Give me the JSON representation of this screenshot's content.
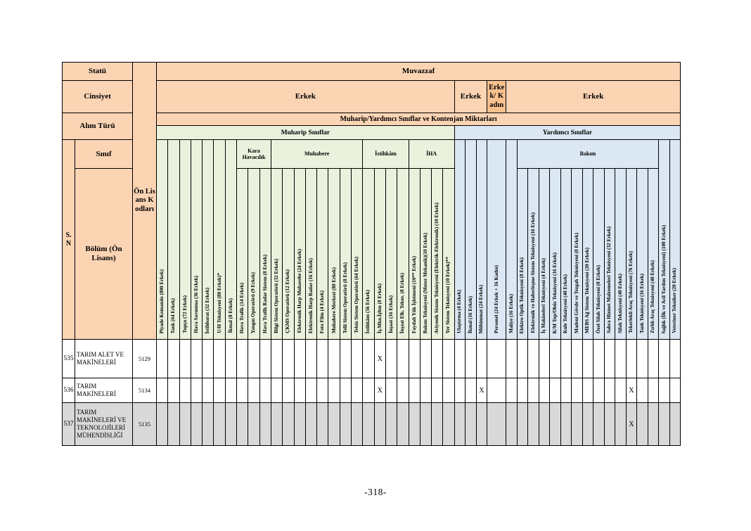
{
  "page": {
    "number": "-318-"
  },
  "table": {
    "left_headers": {
      "statu": "Statü",
      "cinsiyet": "Cinsiyet",
      "alim_turu": "Alım Türü",
      "sinif": "Sınıf",
      "sn": "S. N",
      "bolum": "Bölüm (Ön Lisans)",
      "on_lisans_kodlari": "Ön Lisans Kodları"
    },
    "status_header": "Muvazzaf",
    "gender_spans": [
      {
        "label": "Erkek",
        "span": 26,
        "variant": "light"
      },
      {
        "label": "Erkek",
        "span": 3,
        "variant": "light"
      },
      {
        "label": "Erkek/ Kadın",
        "span": 1,
        "variant": "dark"
      },
      {
        "label": "Erkek",
        "span": 16,
        "variant": "light"
      }
    ],
    "alim_turu_header": "Muharip/Yardımcı Sınıflar ve Kontenjan Miktarları",
    "sections": [
      {
        "label": "Muharip Sınıflar",
        "span": 26,
        "variant": "muharip"
      },
      {
        "label": "Yardımcı Sınıflar",
        "span": 20,
        "variant": "yardimci"
      }
    ],
    "columns": [
      {
        "label": "Piyade Komando (800 Erkek)",
        "section": "muharip",
        "group": null
      },
      {
        "label": "Tank (64 Erkek)",
        "section": "muharip",
        "group": null
      },
      {
        "label": "Topçu (72 Erkek)",
        "section": "muharip",
        "group": null
      },
      {
        "label": "Hava Savunma (36 Erkek)",
        "section": "muharip",
        "group": null
      },
      {
        "label": "İstihbarat (32 Erkek)",
        "section": "muharip",
        "group": null
      },
      {
        "label": "U/H Teknisyeni (80 Erkek)*",
        "section": "muharip",
        "group": null
      },
      {
        "label": "İkmal (8 Erkek)",
        "section": "muharip",
        "group": null
      },
      {
        "label": "Hava Trafik (14 Erkek)",
        "section": "muharip",
        "group": "Kara Havacılık"
      },
      {
        "label": "Yangın Operatörü (9 Erkek)",
        "section": "muharip",
        "group": "Kara Havacılık"
      },
      {
        "label": "Hava Trafik Radar Sistem (8 Erkek)",
        "section": "muharip",
        "group": "Kara Havacılık"
      },
      {
        "label": "Bilgi Sistem Operatörü (32 Erkek)",
        "section": "muharip",
        "group": "Muhabere"
      },
      {
        "label": "ÇKMS Operatörü (12 Erkek)",
        "section": "muharip",
        "group": "Muhabere"
      },
      {
        "label": "Elektronik Harp Muharebe (24 Erkek)",
        "section": "muharip",
        "group": "Muhabere"
      },
      {
        "label": "Elektronik Harp Radar (16 Erkek)",
        "section": "muharip",
        "group": "Muhabere"
      },
      {
        "label": "Foto Film (4 Erkek)",
        "section": "muharip",
        "group": "Muhabere"
      },
      {
        "label": "Muhabere Merkezi (80 Erkek)",
        "section": "muharip",
        "group": "Muhabere"
      },
      {
        "label": "Telli Sistem Operatörü (8 Erkek)",
        "section": "muharip",
        "group": "Muhabere"
      },
      {
        "label": "Telsiz Sistem Operatörü (64 Erkek)",
        "section": "muharip",
        "group": "Muhabere"
      },
      {
        "label": "İstihkâm (56 Erkek)",
        "section": "muharip",
        "group": "İstihkâm"
      },
      {
        "label": "İş.Mkn.İşltm (8 Erkek)",
        "section": "muharip",
        "group": "İstihkâm"
      },
      {
        "label": "İnşaat (16 Erkek)",
        "section": "muharip",
        "group": "İstihkâm"
      },
      {
        "label": "İnşaat Elk. Tekns. (8 Erkek)",
        "section": "muharip",
        "group": "İstihkâm"
      },
      {
        "label": "Faydalı Yük İşletmeni (10** Erkek)",
        "section": "muharip",
        "group": "İHA"
      },
      {
        "label": "Bakım Teknisyeni (Motor Mekanik)(10 Erkek)",
        "section": "muharip",
        "group": "İHA"
      },
      {
        "label": "Aviyonik Sistem Teknisyeni (Elektrik-Elektronik) (10 Erkek)",
        "section": "muharip",
        "group": "İHA"
      },
      {
        "label": "Yer Sistem Teknisyeni (10 Erkek)**",
        "section": "muharip",
        "group": "İHA"
      },
      {
        "label": "Ulaştırma (4 Erkek)",
        "section": "yardimci",
        "group": null
      },
      {
        "label": "İkmal (16 Erkek)",
        "section": "yardimci",
        "group": null
      },
      {
        "label": "Mühimmat (24 Erkek)",
        "section": "yardimci",
        "group": null
      },
      {
        "label": "Personel (24 Erkek + 16 Kadın)",
        "section": "yardimci",
        "group": null,
        "wide": true
      },
      {
        "label": "Maliye (16 Erkek)",
        "section": "yardimci",
        "group": null
      },
      {
        "label": "Elektro Optik Teknisyeni (8 Erkek)",
        "section": "yardimci",
        "group": "Bakım"
      },
      {
        "label": "Elektronik ve Haberleşme Sistem Teknisyeni (16 Erkek)",
        "section": "yardimci",
        "group": "Bakım"
      },
      {
        "label": "İş Makineleri Teknisyeni (4 Erkek)",
        "section": "yardimci",
        "group": "Bakım"
      },
      {
        "label": "K/M Top/Obüs Teknisyeni (16 Erkek)",
        "section": "yardimci",
        "group": "Bakım"
      },
      {
        "label": "Kule Teknisyeni (40 Erkek)",
        "section": "yardimci",
        "group": "Bakım"
      },
      {
        "label": "Madeni Gövde ve Tezgah Teknisyeni (8 Erkek)",
        "section": "yardimci",
        "group": "Bakım"
      },
      {
        "label": "MEBS Ağ Sistem Teknisyeni (20 Erkek)",
        "section": "yardimci",
        "group": "Bakım"
      },
      {
        "label": "Özel Silah Teknisyeni (8 Erkek)",
        "section": "yardimci",
        "group": "Bakım"
      },
      {
        "label": "Sahra Hizmet Malzemeleri Teknisyeni (32 Erkek)",
        "section": "yardimci",
        "group": "Bakım"
      },
      {
        "label": "Silah Teknisyeni (40 Erkek)",
        "section": "yardimci",
        "group": "Bakım"
      },
      {
        "label": "Tekerlekli Araç Teknisyeni (76 Erkek)",
        "section": "yardimci",
        "group": "Bakım"
      },
      {
        "label": "Tank Teknisyeni (16 Erkek)",
        "section": "yardimci",
        "group": "Bakım"
      },
      {
        "label": "Zırhlı Araç Teknisyeni (40 Erkek)",
        "section": "yardimci",
        "group": "Bakım"
      },
      {
        "label": "Sağlık (İlk ve Acil Yardım Teknisyeni) (100 Erkek)",
        "section": "yardimci",
        "group": null
      },
      {
        "label": "Veteriner Tekniker (20 Erkek)",
        "section": "yardimci",
        "group": null
      }
    ],
    "rows": [
      {
        "sn": "535",
        "bolum": "TARIM ALET VE MAKİNELERİ",
        "kod": "5129",
        "x_marks": [
          19
        ],
        "grayed": false
      },
      {
        "sn": "536",
        "bolum": "TARIM MAKİNELERİ",
        "kod": "5134",
        "x_marks": [
          19,
          28,
          41
        ],
        "grayed": false
      },
      {
        "sn": "537",
        "bolum": "TARIM MAKİNELERİ VE TEKNOLOJİLERİ MÜHENDİSLİĞİ",
        "kod": "5135",
        "x_marks": [
          41
        ],
        "grayed": true
      }
    ],
    "mark_symbol": "X",
    "colors": {
      "header_orange": "#fbd4b4",
      "header_orange_dark": "#fac08f",
      "muharip_green": "#eaf1dd",
      "yardimci_blue": "#dbe7f3",
      "grayed_row": "#d9d9d9"
    }
  }
}
